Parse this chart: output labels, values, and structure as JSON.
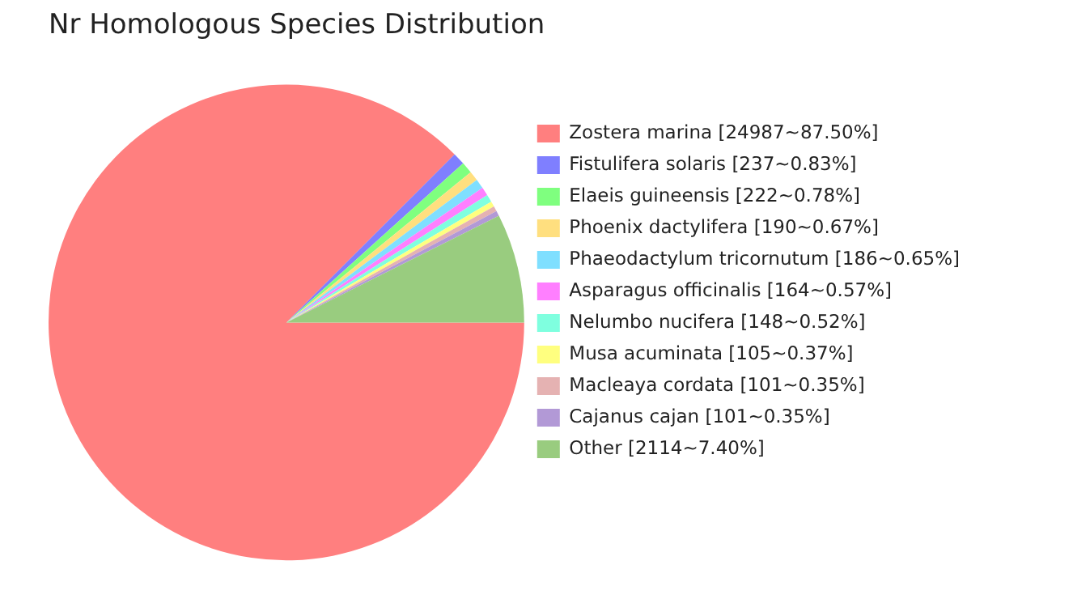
{
  "chart_data": {
    "type": "pie",
    "title": "Nr Homologous Species Distribution",
    "categories": [
      "Zostera marina [24987~87.50%]",
      "Fistulifera solaris [237~0.83%]",
      "Elaeis guineensis [222~0.78%]",
      "Phoenix dactylifera [190~0.67%]",
      "Phaeodactylum tricornutum [186~0.65%]",
      "Asparagus officinalis [164~0.57%]",
      "Nelumbo nucifera [148~0.52%]",
      "Musa acuminata [105~0.37%]",
      "Macleaya cordata [101~0.35%]",
      "Cajanus cajan [101~0.35%]",
      "Other [2114~7.40%]"
    ],
    "values": [
      24987,
      237,
      222,
      190,
      186,
      164,
      148,
      105,
      101,
      101,
      2114
    ],
    "colors": [
      "#ff7f7f",
      "#7f7fff",
      "#7fff7f",
      "#ffdf7f",
      "#7fdfff",
      "#ff7fff",
      "#7fffdf",
      "#ffff7f",
      "#e5b2b2",
      "#b299d6",
      "#99cc7f"
    ],
    "legend": "right"
  }
}
